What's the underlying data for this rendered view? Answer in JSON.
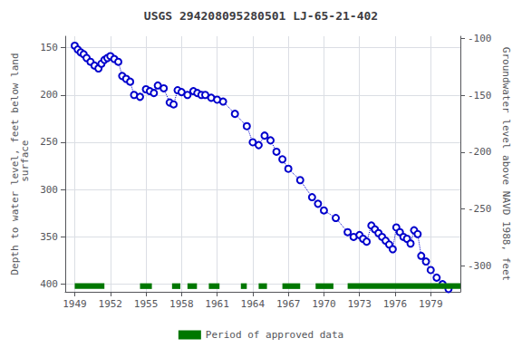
{
  "chart_data": {
    "type": "line",
    "title": "USGS 294208095280501 LJ-65-21-402",
    "ylabel": "Depth to water level, feet below land\n surface",
    "y2label": "Groundwater level above NAVD 1988, feet",
    "xlim": [
      1948.2,
      1981.5
    ],
    "xticks": [
      1949,
      1952,
      1955,
      1958,
      1961,
      1964,
      1967,
      1970,
      1973,
      1976,
      1979
    ],
    "ylim": [
      408,
      138
    ],
    "yticks": [
      150,
      200,
      250,
      300,
      350,
      400
    ],
    "y2lim": [
      -323,
      -98
    ],
    "y2ticks": [
      -100,
      -150,
      -200,
      -250,
      -300
    ],
    "grid": true,
    "legend": "bottom",
    "color": "#0000cc",
    "marker": "circle",
    "line_style": "dotted",
    "x": [
      1949.0,
      1949.25,
      1949.5,
      1949.75,
      1950.0,
      1950.33,
      1950.67,
      1951.0,
      1951.25,
      1951.5,
      1951.75,
      1952.0,
      1952.33,
      1952.67,
      1953.0,
      1953.33,
      1953.67,
      1954.0,
      1954.5,
      1955.0,
      1955.33,
      1955.67,
      1956.0,
      1956.5,
      1957.0,
      1957.33,
      1957.67,
      1958.0,
      1958.5,
      1959.0,
      1959.33,
      1959.67,
      1960.0,
      1960.5,
      1961.0,
      1961.5,
      1962.5,
      1963.5,
      1964.0,
      1964.5,
      1965.0,
      1965.5,
      1966.0,
      1966.5,
      1967.0,
      1968.0,
      1969.0,
      1969.5,
      1970.0,
      1971.0,
      1972.0,
      1972.5,
      1973.0,
      1973.3,
      1973.6,
      1974.0,
      1974.3,
      1974.6,
      1974.9,
      1975.2,
      1975.5,
      1975.8,
      1976.1,
      1976.4,
      1976.7,
      1977.0,
      1977.3,
      1977.6,
      1977.9,
      1978.2,
      1978.6,
      1979.0,
      1979.5,
      1980.0,
      1980.5
    ],
    "values": [
      148,
      152,
      155,
      157,
      161,
      165,
      169,
      172,
      167,
      163,
      161,
      159,
      162,
      165,
      180,
      183,
      186,
      200,
      202,
      194,
      196,
      198,
      190,
      193,
      208,
      210,
      195,
      197,
      200,
      196,
      198,
      200,
      200,
      203,
      205,
      207,
      220,
      233,
      250,
      253,
      243,
      248,
      260,
      268,
      278,
      290,
      308,
      315,
      322,
      330,
      345,
      350,
      348,
      352,
      355,
      338,
      342,
      346,
      350,
      354,
      358,
      363,
      340,
      345,
      350,
      352,
      357,
      343,
      347,
      370,
      376,
      385,
      393,
      400,
      405
    ],
    "approved_periods": {
      "name": "Period of approved data",
      "color": "#007700",
      "y_range": [
        399,
        405
      ],
      "periods": [
        [
          1949.0,
          1951.5
        ],
        [
          1954.5,
          1955.5
        ],
        [
          1957.2,
          1957.9
        ],
        [
          1958.5,
          1959.3
        ],
        [
          1960.3,
          1961.2
        ],
        [
          1963.0,
          1963.5
        ],
        [
          1964.5,
          1965.2
        ],
        [
          1966.5,
          1968.0
        ],
        [
          1969.3,
          1970.8
        ],
        [
          1972.0,
          1981.5
        ]
      ]
    }
  }
}
